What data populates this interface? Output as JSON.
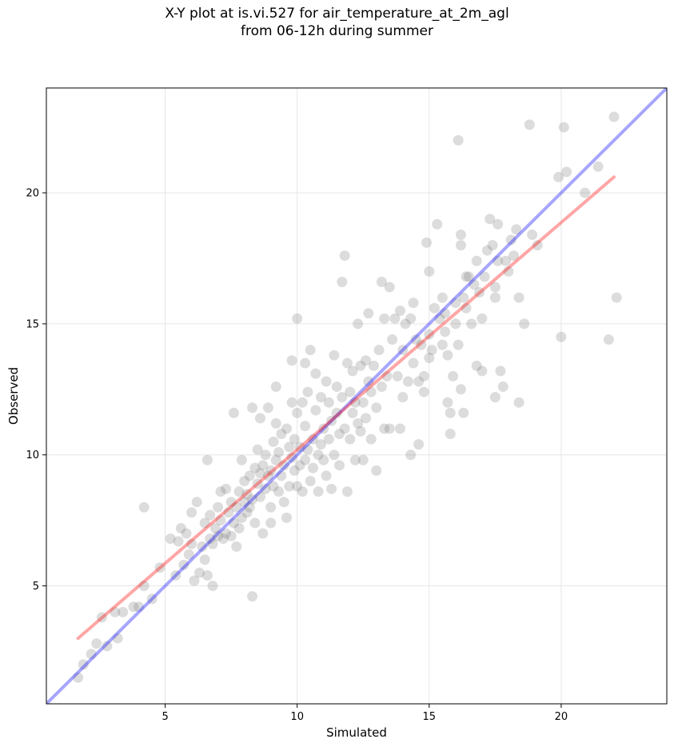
{
  "chart_data": {
    "type": "scatter",
    "title_line1": "X-Y plot at is.vi.527 for air_temperature_at_2m_agl",
    "title_line2": "from 06-12h during summer",
    "xlabel": "Simulated",
    "ylabel": "Observed",
    "xlim": [
      0.5,
      24.0
    ],
    "ylim": [
      0.5,
      24.0
    ],
    "xticks": [
      5,
      10,
      15,
      20
    ],
    "yticks": [
      5,
      10,
      15,
      20
    ],
    "grid": true,
    "colors": {
      "points": "#808080",
      "one_to_one": "#0000ff",
      "fit": "#ff0000"
    },
    "one_to_one_line": {
      "x": [
        0.5,
        24.0
      ],
      "y": [
        0.5,
        24.0
      ]
    },
    "regression_line": {
      "x": [
        1.7,
        22.0
      ],
      "y": [
        3.0,
        20.6
      ]
    },
    "points": [
      [
        1.7,
        1.5
      ],
      [
        1.9,
        2.0
      ],
      [
        2.2,
        2.4
      ],
      [
        2.4,
        2.8
      ],
      [
        2.6,
        3.8
      ],
      [
        2.8,
        2.7
      ],
      [
        3.1,
        4.0
      ],
      [
        3.2,
        3.0
      ],
      [
        3.4,
        4.0
      ],
      [
        3.8,
        4.2
      ],
      [
        4.0,
        4.2
      ],
      [
        4.2,
        5.0
      ],
      [
        4.2,
        8.0
      ],
      [
        4.5,
        4.5
      ],
      [
        4.8,
        5.7
      ],
      [
        5.2,
        6.8
      ],
      [
        5.4,
        5.4
      ],
      [
        5.5,
        6.7
      ],
      [
        5.6,
        7.2
      ],
      [
        5.7,
        5.8
      ],
      [
        5.8,
        7.0
      ],
      [
        5.9,
        6.2
      ],
      [
        6.0,
        6.6
      ],
      [
        6.0,
        7.8
      ],
      [
        6.1,
        5.2
      ],
      [
        6.2,
        8.2
      ],
      [
        6.3,
        5.5
      ],
      [
        6.4,
        6.5
      ],
      [
        6.5,
        6.0
      ],
      [
        6.5,
        7.4
      ],
      [
        6.6,
        5.4
      ],
      [
        6.6,
        9.8
      ],
      [
        6.7,
        6.8
      ],
      [
        6.7,
        7.7
      ],
      [
        6.8,
        5.0
      ],
      [
        6.8,
        6.6
      ],
      [
        6.9,
        7.2
      ],
      [
        7.0,
        8.0
      ],
      [
        7.0,
        6.9
      ],
      [
        7.1,
        8.6
      ],
      [
        7.1,
        7.5
      ],
      [
        7.2,
        6.8
      ],
      [
        7.3,
        8.7
      ],
      [
        7.3,
        7.0
      ],
      [
        7.4,
        7.8
      ],
      [
        7.5,
        6.9
      ],
      [
        7.5,
        8.2
      ],
      [
        7.6,
        11.6
      ],
      [
        7.6,
        7.4
      ],
      [
        7.7,
        6.5
      ],
      [
        7.7,
        8.0
      ],
      [
        7.8,
        7.2
      ],
      [
        7.8,
        8.6
      ],
      [
        7.9,
        9.8
      ],
      [
        7.9,
        7.6
      ],
      [
        8.0,
        8.2
      ],
      [
        8.0,
        9.0
      ],
      [
        8.1,
        7.8
      ],
      [
        8.1,
        8.5
      ],
      [
        8.2,
        9.2
      ],
      [
        8.2,
        8.0
      ],
      [
        8.3,
        8.3
      ],
      [
        8.3,
        11.8
      ],
      [
        8.3,
        4.6
      ],
      [
        8.4,
        9.5
      ],
      [
        8.4,
        7.4
      ],
      [
        8.5,
        8.9
      ],
      [
        8.5,
        10.2
      ],
      [
        8.6,
        8.4
      ],
      [
        8.6,
        9.3
      ],
      [
        8.6,
        11.4
      ],
      [
        8.7,
        7.0
      ],
      [
        8.7,
        9.6
      ],
      [
        8.8,
        8.7
      ],
      [
        8.8,
        10.0
      ],
      [
        8.9,
        9.2
      ],
      [
        8.9,
        11.8
      ],
      [
        9.0,
        8.0
      ],
      [
        9.0,
        9.4
      ],
      [
        9.0,
        7.4
      ],
      [
        9.1,
        10.5
      ],
      [
        9.1,
        8.8
      ],
      [
        9.2,
        11.2
      ],
      [
        9.2,
        9.8
      ],
      [
        9.2,
        12.6
      ],
      [
        9.3,
        8.6
      ],
      [
        9.3,
        10.1
      ],
      [
        9.4,
        9.2
      ],
      [
        9.4,
        10.8
      ],
      [
        9.5,
        8.2
      ],
      [
        9.5,
        9.6
      ],
      [
        9.6,
        11.0
      ],
      [
        9.6,
        7.6
      ],
      [
        9.7,
        10.3
      ],
      [
        9.7,
        8.8
      ],
      [
        9.8,
        9.9
      ],
      [
        9.8,
        12.0
      ],
      [
        9.8,
        13.6
      ],
      [
        9.9,
        9.4
      ],
      [
        9.9,
        10.6
      ],
      [
        10.0,
        8.8
      ],
      [
        10.0,
        11.6
      ],
      [
        10.0,
        15.2
      ],
      [
        10.1,
        9.6
      ],
      [
        10.1,
        10.3
      ],
      [
        10.2,
        12.0
      ],
      [
        10.2,
        8.6
      ],
      [
        10.3,
        11.1
      ],
      [
        10.3,
        9.8
      ],
      [
        10.3,
        13.5
      ],
      [
        10.4,
        10.2
      ],
      [
        10.4,
        12.4
      ],
      [
        10.5,
        9.0
      ],
      [
        10.5,
        14.0
      ],
      [
        10.6,
        10.6
      ],
      [
        10.6,
        9.5
      ],
      [
        10.7,
        11.7
      ],
      [
        10.7,
        13.1
      ],
      [
        10.8,
        10.0
      ],
      [
        10.8,
        8.6
      ],
      [
        10.9,
        12.2
      ],
      [
        10.9,
        10.4
      ],
      [
        11.0,
        11.0
      ],
      [
        11.0,
        9.8
      ],
      [
        11.1,
        12.8
      ],
      [
        11.1,
        9.2
      ],
      [
        11.2,
        10.6
      ],
      [
        11.2,
        12.0
      ],
      [
        11.3,
        11.3
      ],
      [
        11.3,
        8.7
      ],
      [
        11.4,
        13.8
      ],
      [
        11.4,
        10.0
      ],
      [
        11.5,
        11.6
      ],
      [
        11.5,
        12.6
      ],
      [
        11.6,
        10.8
      ],
      [
        11.6,
        9.6
      ],
      [
        11.7,
        12.2
      ],
      [
        11.7,
        16.6
      ],
      [
        11.8,
        11.0
      ],
      [
        11.8,
        17.6
      ],
      [
        11.9,
        13.5
      ],
      [
        11.9,
        8.6
      ],
      [
        12.0,
        12.4
      ],
      [
        12.0,
        10.6
      ],
      [
        12.1,
        11.6
      ],
      [
        12.1,
        13.2
      ],
      [
        12.2,
        12.0
      ],
      [
        12.2,
        9.8
      ],
      [
        12.3,
        11.2
      ],
      [
        12.3,
        15.0
      ],
      [
        12.4,
        13.4
      ],
      [
        12.4,
        10.9
      ],
      [
        12.5,
        12.0
      ],
      [
        12.5,
        9.8
      ],
      [
        12.6,
        11.4
      ],
      [
        12.6,
        13.6
      ],
      [
        12.7,
        12.8
      ],
      [
        12.7,
        15.4
      ],
      [
        12.8,
        10.6
      ],
      [
        12.8,
        12.4
      ],
      [
        12.9,
        13.4
      ],
      [
        13.0,
        11.8
      ],
      [
        13.0,
        9.4
      ],
      [
        13.1,
        14.0
      ],
      [
        13.2,
        12.6
      ],
      [
        13.2,
        16.6
      ],
      [
        13.3,
        11.0
      ],
      [
        13.3,
        15.2
      ],
      [
        13.4,
        13.0
      ],
      [
        13.5,
        16.4
      ],
      [
        13.5,
        11.0
      ],
      [
        13.6,
        14.4
      ],
      [
        13.7,
        15.2
      ],
      [
        13.8,
        13.0
      ],
      [
        13.9,
        11.0
      ],
      [
        13.9,
        15.5
      ],
      [
        14.0,
        12.2
      ],
      [
        14.0,
        14.0
      ],
      [
        14.1,
        15.0
      ],
      [
        14.2,
        12.8
      ],
      [
        14.3,
        15.2
      ],
      [
        14.3,
        10.0
      ],
      [
        14.4,
        13.5
      ],
      [
        14.4,
        15.8
      ],
      [
        14.5,
        14.4
      ],
      [
        14.6,
        10.4
      ],
      [
        14.6,
        12.8
      ],
      [
        14.7,
        14.2
      ],
      [
        14.8,
        12.4
      ],
      [
        14.8,
        13.0
      ],
      [
        14.9,
        18.1
      ],
      [
        15.0,
        13.7
      ],
      [
        15.0,
        14.6
      ],
      [
        15.0,
        17.0
      ],
      [
        15.1,
        14.0
      ],
      [
        15.2,
        15.6
      ],
      [
        15.3,
        18.8
      ],
      [
        15.4,
        15.2
      ],
      [
        15.5,
        14.2
      ],
      [
        15.5,
        16.0
      ],
      [
        15.6,
        15.4
      ],
      [
        15.6,
        14.7
      ],
      [
        15.7,
        12.0
      ],
      [
        15.7,
        13.8
      ],
      [
        15.8,
        11.6
      ],
      [
        15.8,
        10.8
      ],
      [
        15.9,
        13.0
      ],
      [
        16.0,
        15.0
      ],
      [
        16.0,
        15.8
      ],
      [
        16.1,
        14.2
      ],
      [
        16.1,
        22.0
      ],
      [
        16.2,
        18.0
      ],
      [
        16.2,
        18.4
      ],
      [
        16.2,
        12.5
      ],
      [
        16.3,
        16.0
      ],
      [
        16.3,
        11.6
      ],
      [
        16.4,
        16.8
      ],
      [
        16.4,
        15.6
      ],
      [
        16.5,
        16.8
      ],
      [
        16.6,
        15.0
      ],
      [
        16.7,
        16.5
      ],
      [
        16.8,
        17.4
      ],
      [
        16.8,
        13.4
      ],
      [
        16.9,
        16.2
      ],
      [
        17.0,
        15.2
      ],
      [
        17.0,
        13.2
      ],
      [
        17.1,
        16.8
      ],
      [
        17.2,
        17.8
      ],
      [
        17.3,
        19.0
      ],
      [
        17.4,
        18.0
      ],
      [
        17.5,
        12.2
      ],
      [
        17.5,
        16.4
      ],
      [
        17.5,
        16.0
      ],
      [
        17.6,
        17.4
      ],
      [
        17.6,
        18.8
      ],
      [
        17.7,
        13.2
      ],
      [
        17.8,
        12.6
      ],
      [
        17.9,
        17.4
      ],
      [
        18.0,
        17.0
      ],
      [
        18.1,
        18.2
      ],
      [
        18.2,
        17.6
      ],
      [
        18.3,
        18.6
      ],
      [
        18.4,
        12.0
      ],
      [
        18.4,
        16.0
      ],
      [
        18.6,
        15.0
      ],
      [
        18.8,
        22.6
      ],
      [
        18.9,
        18.4
      ],
      [
        19.1,
        18.0
      ],
      [
        19.9,
        20.6
      ],
      [
        20.0,
        14.5
      ],
      [
        20.1,
        22.5
      ],
      [
        20.2,
        20.8
      ],
      [
        20.9,
        20.0
      ],
      [
        21.4,
        21.0
      ],
      [
        21.8,
        14.4
      ],
      [
        22.0,
        22.9
      ],
      [
        22.1,
        16.0
      ]
    ]
  }
}
